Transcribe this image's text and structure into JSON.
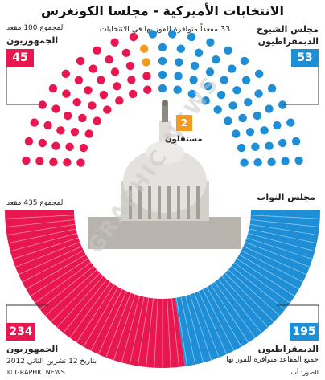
{
  "header": {
    "title": "الانتخابات الأميركية - مجلسا الكونغرس",
    "note_seats_available": "33 مقعداً متوافرة للفوز بها في الانتخابات"
  },
  "senate": {
    "label_line1": "مجلس الشيوخ",
    "label_line2": "الديمقراطيون",
    "democrats": 53,
    "republicans": 45,
    "independents": 2,
    "rep_label": "الجمهوريون",
    "total_label": "المجموع 100 مقعد",
    "independent_label": "مستقلون"
  },
  "house": {
    "label": "مجلس النواب",
    "total_label": "المجموع 435 مقعد",
    "republicans": 234,
    "democrats": 195,
    "rep_label": "الجمهوريون",
    "dem_label": "الديمقراطيون",
    "note_all_seats": "جميع المقاعد متوافرة للفوز بها"
  },
  "footer": {
    "date": "بتاريخ 12 تشرين الثاني 2012",
    "credit": "© GRAPHIC NEWS",
    "source": "الصور: أب"
  },
  "watermark": "GRAPHIC NEWS",
  "colors": {
    "republican": "#e8174f",
    "democrat": "#1e8fd6",
    "independent": "#f29b21"
  },
  "chart_data": [
    {
      "type": "pie",
      "title": "مجلس الشيوخ",
      "categories": [
        "الديمقراطيون",
        "الجمهوريون",
        "مستقلون"
      ],
      "values": [
        53,
        45,
        2
      ]
    },
    {
      "type": "pie",
      "title": "مجلس النواب",
      "categories": [
        "الجمهوريون",
        "الديمقراطيون"
      ],
      "values": [
        234,
        195
      ]
    }
  ]
}
